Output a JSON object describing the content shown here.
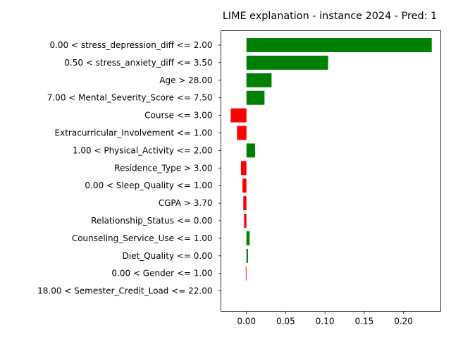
{
  "chart_data": {
    "type": "bar",
    "orientation": "horizontal",
    "title": "LIME explanation - instance 2024 - Pred: 1",
    "xlabel": "",
    "ylabel": "",
    "xlim": [
      -0.0325,
      0.2475
    ],
    "xticks": [
      0.0,
      0.05,
      0.1,
      0.15,
      0.2
    ],
    "xtick_labels": [
      "0.00",
      "0.05",
      "0.10",
      "0.15",
      "0.20"
    ],
    "grid": false,
    "legend": "none",
    "colors": {
      "positive": "#008000",
      "negative": "#ff0000"
    },
    "categories": [
      "0.00 < stress_depression_diff <= 2.00",
      "0.50 < stress_anxiety_diff <= 3.50",
      "Age > 28.00",
      "7.00 < Mental_Severity_Score <= 7.50",
      "Course <= 3.00",
      "Extracurricular_Involvement <= 1.00",
      "1.00 < Physical_Activity <= 2.00",
      "Residence_Type > 3.00",
      "0.00 < Sleep_Quality <= 1.00",
      "CGPA > 3.70",
      "Relationship_Status <= 0.00",
      "Counseling_Service_Use <= 1.00",
      "Diet_Quality <= 0.00",
      "0.00 < Gender <= 1.00",
      "18.00 < Semester_Credit_Load <= 22.00"
    ],
    "values": [
      0.236,
      0.104,
      0.032,
      0.023,
      -0.02,
      -0.012,
      0.011,
      -0.007,
      -0.005,
      -0.004,
      -0.003,
      0.004,
      0.002,
      -0.0008,
      0.0
    ]
  }
}
